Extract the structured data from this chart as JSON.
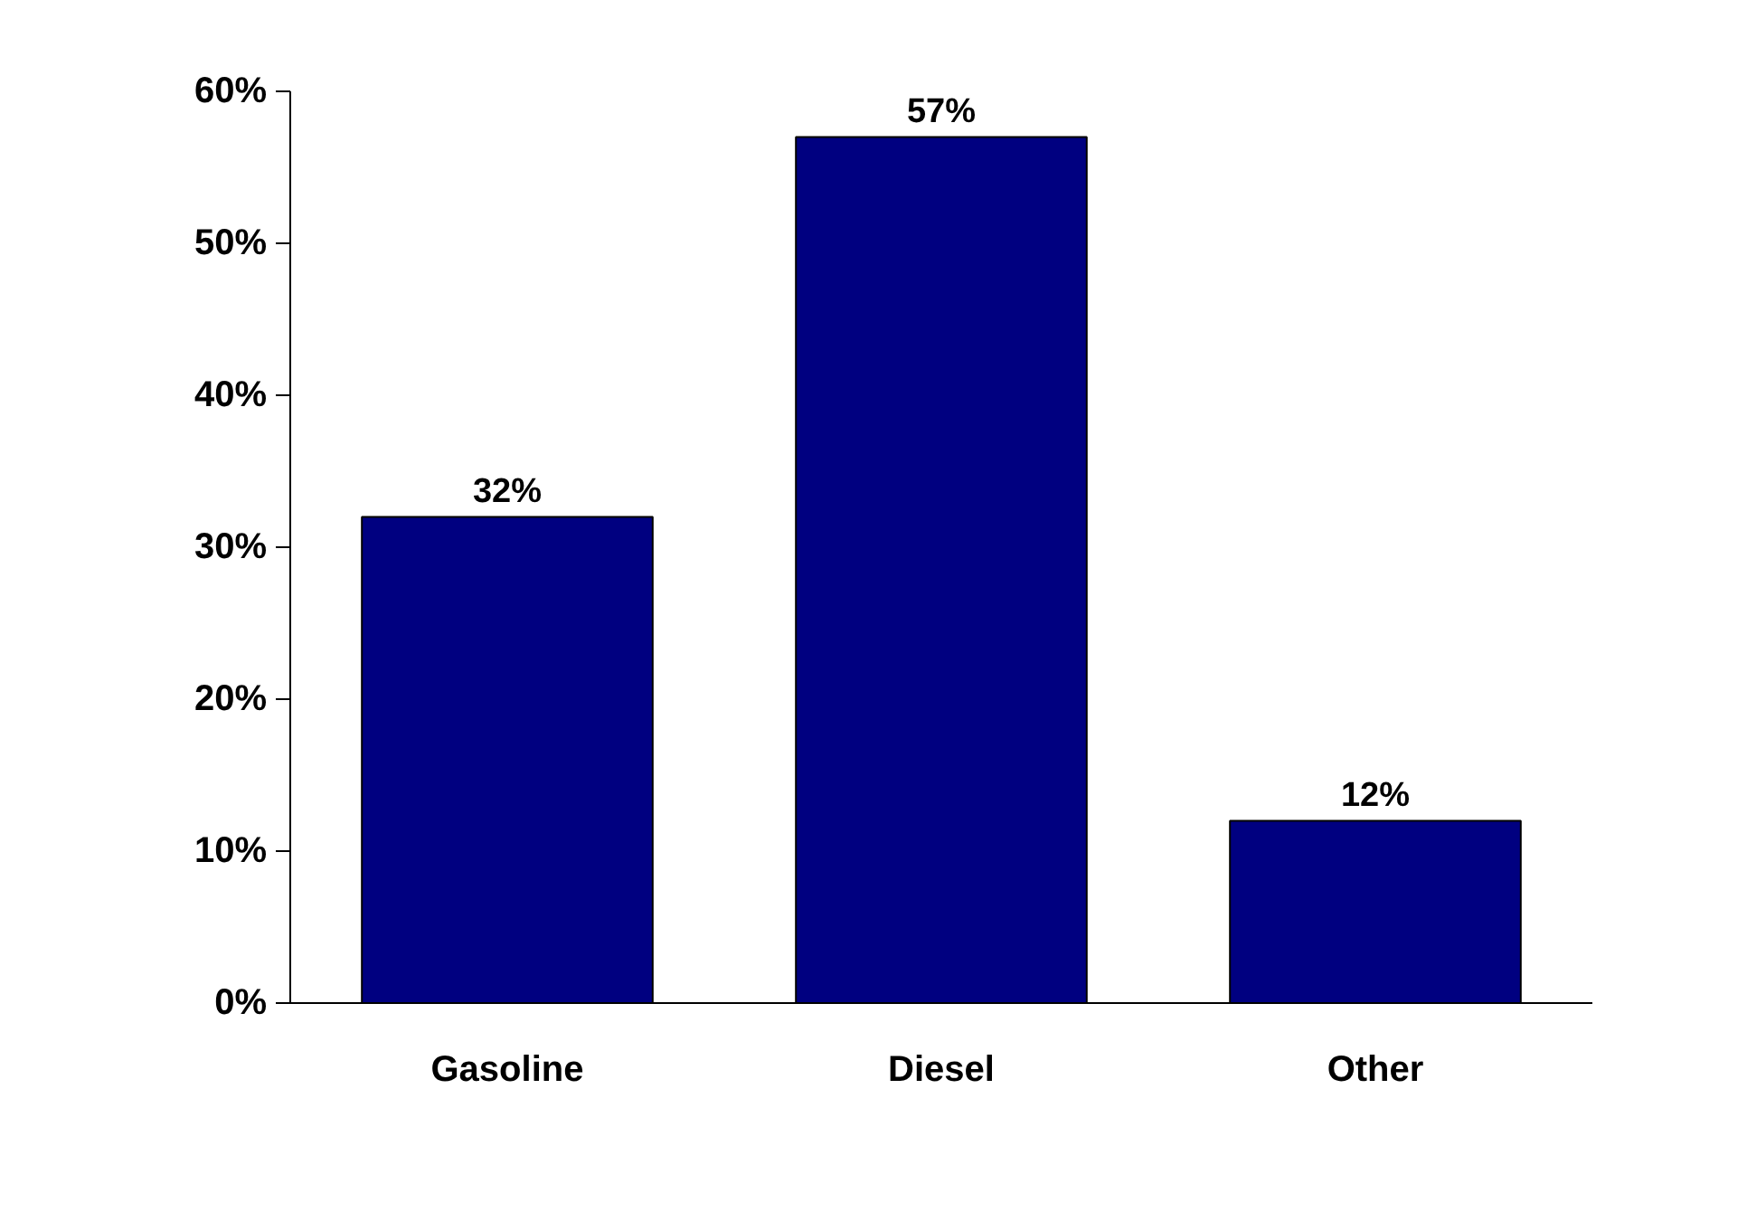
{
  "chart_data": {
    "type": "bar",
    "categories": [
      "Gasoline",
      "Diesel",
      "Other"
    ],
    "values": [
      32,
      57,
      12
    ],
    "value_labels": [
      "32%",
      "57%",
      "12%"
    ],
    "color": "#000080",
    "ylim": [
      0,
      60
    ],
    "yticks": [
      {
        "value": 0,
        "label": "0%"
      },
      {
        "value": 10,
        "label": "10%"
      },
      {
        "value": 20,
        "label": "20%"
      },
      {
        "value": 30,
        "label": "30%"
      },
      {
        "value": 40,
        "label": "40%"
      },
      {
        "value": 50,
        "label": "50%"
      },
      {
        "value": 60,
        "label": "60%"
      }
    ],
    "grid": false
  }
}
